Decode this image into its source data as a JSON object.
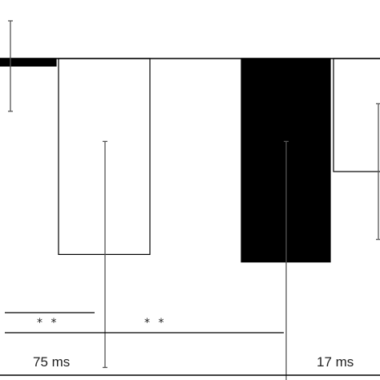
{
  "chart_data": {
    "type": "bar",
    "groups": [
      {
        "label": "75 ms",
        "bars": [
          {
            "fill": "black",
            "value": -0.1,
            "error": 0.6
          },
          {
            "fill": "white",
            "value": -2.6,
            "error": 1.5
          }
        ]
      },
      {
        "label": "17 ms",
        "bars": [
          {
            "fill": "black",
            "value": -2.7,
            "error": 1.6
          },
          {
            "fill": "white",
            "value": -1.5,
            "error": 0.9
          }
        ]
      }
    ],
    "significance": [
      {
        "text": "* *"
      },
      {
        "text": "* *"
      }
    ],
    "colors": {
      "black_bar": "#000000",
      "white_bar": "#ffffff",
      "axis": "#000000"
    }
  }
}
